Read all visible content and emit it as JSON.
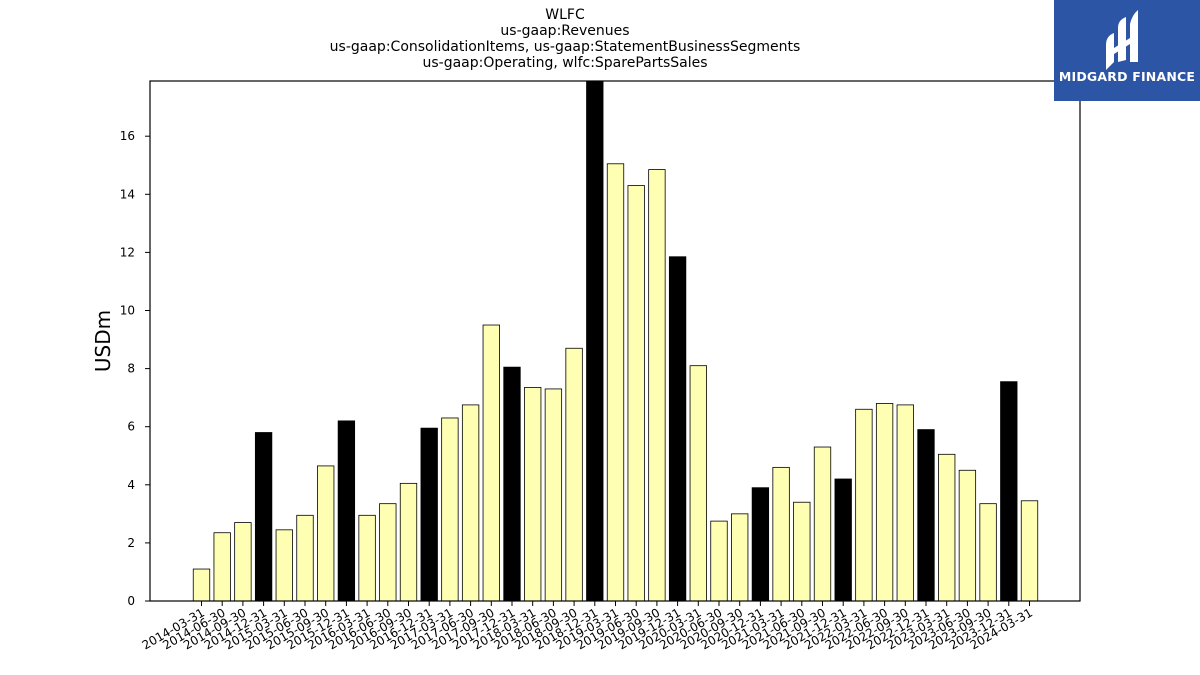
{
  "brand": {
    "name": "MIDGARD FINANCE",
    "color": "#2d55a5",
    "icon": "midgard-logo-icon"
  },
  "chart_data": {
    "type": "bar",
    "title_lines": [
      "WLFC",
      "us-gaap:Revenues",
      "us-gaap:ConsolidationItems, us-gaap:StatementBusinessSegments",
      "us-gaap:Operating, wlfc:SparePartsSales"
    ],
    "xlabel": "",
    "ylabel": "USDm",
    "ylim": [
      0,
      17.9
    ],
    "yticks": [
      0,
      2,
      4,
      6,
      8,
      10,
      12,
      14,
      16
    ],
    "grid": false,
    "colors": {
      "quarter": "#ffffb3",
      "year_end": "#000000",
      "edge": "#000000"
    },
    "categories": [
      "2014-03-31",
      "2014-06-30",
      "2014-09-30",
      "2014-12-31",
      "2015-03-31",
      "2015-06-30",
      "2015-09-30",
      "2015-12-31",
      "2016-03-31",
      "2016-06-30",
      "2016-09-30",
      "2016-12-31",
      "2017-03-31",
      "2017-06-30",
      "2017-09-30",
      "2017-12-31",
      "2018-03-31",
      "2018-06-30",
      "2018-09-30",
      "2018-12-31",
      "2019-03-31",
      "2019-06-30",
      "2019-09-30",
      "2019-12-31",
      "2020-03-31",
      "2020-06-30",
      "2020-09-30",
      "2020-12-31",
      "2021-03-31",
      "2021-06-30",
      "2021-09-30",
      "2021-12-31",
      "2022-03-31",
      "2022-06-30",
      "2022-09-30",
      "2022-12-31",
      "2023-03-31",
      "2023-06-30",
      "2023-09-30",
      "2023-12-31",
      "2024-03-31"
    ],
    "values": [
      1.1,
      2.35,
      2.7,
      5.8,
      2.45,
      2.95,
      4.65,
      6.2,
      2.95,
      3.35,
      4.05,
      5.95,
      6.3,
      6.75,
      9.5,
      8.05,
      7.35,
      7.3,
      8.7,
      17.9,
      15.05,
      14.3,
      14.85,
      11.85,
      8.1,
      2.75,
      3.0,
      3.9,
      4.6,
      3.4,
      5.3,
      4.2,
      6.6,
      6.8,
      6.75,
      5.9,
      5.05,
      4.5,
      3.35,
      7.55,
      3.45
    ],
    "year_end_flags": [
      false,
      false,
      false,
      true,
      false,
      false,
      false,
      true,
      false,
      false,
      false,
      true,
      false,
      false,
      false,
      true,
      false,
      false,
      false,
      true,
      false,
      false,
      false,
      true,
      false,
      false,
      false,
      true,
      false,
      false,
      false,
      true,
      false,
      false,
      false,
      true,
      false,
      false,
      false,
      true,
      false
    ]
  }
}
